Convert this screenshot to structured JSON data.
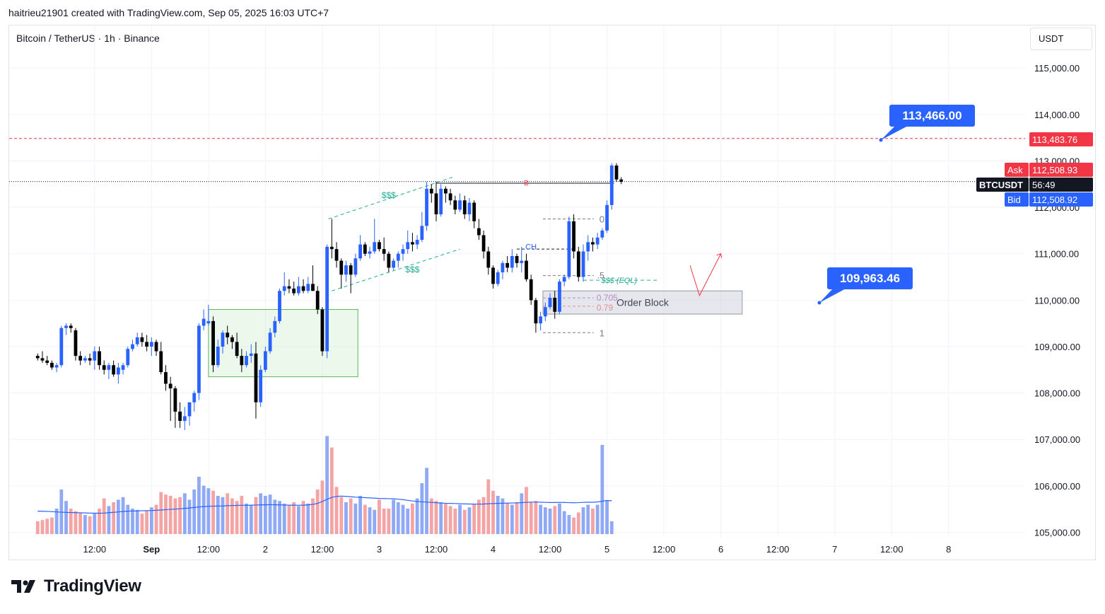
{
  "header": {
    "attribution": "haitrieu21901 created with TradingView.com, Sep 05, 2025 16:03 UTC+7"
  },
  "symbol": {
    "title": "Bitcoin / TetherUS · 1h · Binance"
  },
  "toolbar": {
    "currency": "USDT"
  },
  "brand": {
    "name": "TradingView"
  },
  "colors": {
    "up": "#2962ff",
    "down": "#000000",
    "vol_up": "#8fa9f5",
    "vol_down": "#f4a4a4",
    "ask": "#f23645",
    "bid": "#2962ff",
    "dashed_line": "#f23645",
    "order_block": "#d1d4dc",
    "green_zone": "#c8ecc8",
    "ma": "#2962ff"
  },
  "chart_data": {
    "type": "candlestick",
    "y_axis": {
      "range": [
        104950,
        115650
      ],
      "ticks": [
        105000,
        106000,
        107000,
        108000,
        109000,
        110000,
        111000,
        112000,
        113000,
        114000,
        115000
      ],
      "tick_labels": [
        "105,000.00",
        "106,000.00",
        "107,000.00",
        "108,000.00",
        "109,000.00",
        "110,000.00",
        "111,000.00",
        "112,000.00",
        "113,000.00",
        "114,000.00",
        "115,000.00"
      ]
    },
    "x_axis": {
      "range_hours": [
        -6,
        141
      ],
      "tick_hours": [
        12,
        24,
        36,
        48,
        60,
        72,
        84,
        96,
        108,
        120,
        132,
        144,
        156,
        168,
        180,
        192
      ],
      "tick_labels": [
        "12:00",
        "Sep",
        "12:00",
        "2",
        "12:00",
        "3",
        "12:00",
        "4",
        "12:00",
        "5",
        "12:00",
        "6",
        "12:00",
        "7",
        "12:00",
        "8"
      ]
    },
    "candles": [
      [
        108800,
        108850,
        108700,
        108750
      ],
      [
        108750,
        108900,
        108650,
        108700
      ],
      [
        108700,
        108800,
        108600,
        108650
      ],
      [
        108650,
        108700,
        108500,
        108550
      ],
      [
        108550,
        108650,
        108450,
        108600
      ],
      [
        108600,
        109450,
        108550,
        109400
      ],
      [
        109400,
        109500,
        109250,
        109450
      ],
      [
        109450,
        109500,
        109300,
        109400
      ],
      [
        109350,
        109400,
        108700,
        108800
      ],
      [
        108800,
        108900,
        108600,
        108700
      ],
      [
        108700,
        108800,
        108650,
        108750
      ],
      [
        108750,
        108850,
        108600,
        108700
      ],
      [
        108700,
        109000,
        108500,
        108900
      ],
      [
        108900,
        109000,
        108500,
        108600
      ],
      [
        108600,
        108700,
        108400,
        108500
      ],
      [
        108500,
        108650,
        108300,
        108600
      ],
      [
        108600,
        108700,
        108350,
        108400
      ],
      [
        108400,
        108650,
        108200,
        108550
      ],
      [
        108500,
        108650,
        108400,
        108600
      ],
      [
        108600,
        109000,
        108550,
        108950
      ],
      [
        108950,
        109150,
        108900,
        109050
      ],
      [
        109050,
        109300,
        109000,
        109200
      ],
      [
        109200,
        109300,
        109000,
        109100
      ],
      [
        109100,
        109250,
        108900,
        109000
      ],
      [
        109000,
        109200,
        108800,
        109100
      ],
      [
        109100,
        109150,
        108800,
        108900
      ],
      [
        108900,
        109100,
        108400,
        108450
      ],
      [
        108450,
        108600,
        108050,
        108200
      ],
      [
        108200,
        108350,
        107400,
        108100
      ],
      [
        108100,
        108150,
        107250,
        107600
      ],
      [
        107600,
        107800,
        107250,
        107400
      ],
      [
        107400,
        107700,
        107200,
        107500
      ],
      [
        107500,
        107800,
        107300,
        107800
      ],
      [
        107800,
        108050,
        107600,
        108000
      ],
      [
        108000,
        109500,
        107850,
        109450
      ],
      [
        109450,
        109800,
        109350,
        109600
      ],
      [
        109500,
        109900,
        109450,
        109550
      ],
      [
        109550,
        109650,
        108450,
        108600
      ],
      [
        108600,
        109150,
        108550,
        109000
      ],
      [
        109000,
        109350,
        108850,
        109300
      ],
      [
        109300,
        109450,
        109050,
        109200
      ],
      [
        109200,
        109250,
        108950,
        109100
      ],
      [
        109100,
        109300,
        108750,
        108800
      ],
      [
        108800,
        108950,
        108450,
        108600
      ],
      [
        108600,
        108900,
        108550,
        108800
      ],
      [
        108800,
        109050,
        108650,
        108850
      ],
      [
        108850,
        109100,
        107450,
        107800
      ],
      [
        107800,
        108600,
        107700,
        108500
      ],
      [
        108500,
        109000,
        108450,
        108900
      ],
      [
        108900,
        109400,
        108850,
        109300
      ],
      [
        109300,
        109650,
        109200,
        109550
      ],
      [
        109550,
        110250,
        109500,
        110200
      ],
      [
        110200,
        110600,
        110100,
        110300
      ],
      [
        110300,
        110450,
        110150,
        110250
      ],
      [
        110250,
        110400,
        110100,
        110150
      ],
      [
        110150,
        110500,
        110100,
        110300
      ],
      [
        110300,
        110450,
        110150,
        110200
      ],
      [
        110200,
        110500,
        110150,
        110350
      ],
      [
        110350,
        110750,
        110200,
        110200
      ],
      [
        110200,
        110300,
        109700,
        109800
      ],
      [
        109800,
        109850,
        108800,
        108900
      ],
      [
        108900,
        111200,
        108750,
        111150
      ],
      [
        111150,
        111750,
        110900,
        111100
      ],
      [
        111100,
        111250,
        110700,
        110850
      ],
      [
        110850,
        110900,
        110250,
        110550
      ],
      [
        110550,
        110850,
        110400,
        110750
      ],
      [
        110750,
        110800,
        110150,
        110550
      ],
      [
        110550,
        111000,
        110500,
        110900
      ],
      [
        110900,
        111400,
        110850,
        111200
      ],
      [
        111200,
        111250,
        110950,
        111000
      ],
      [
        111000,
        111150,
        110900,
        111050
      ],
      [
        111050,
        111750,
        111000,
        111250
      ],
      [
        111250,
        111300,
        111050,
        111100
      ],
      [
        111100,
        111350,
        110850,
        111000
      ],
      [
        111000,
        111050,
        110600,
        110700
      ],
      [
        110700,
        110900,
        110650,
        110850
      ],
      [
        110850,
        111050,
        110700,
        111000
      ],
      [
        111000,
        111200,
        110850,
        111100
      ],
      [
        111100,
        111500,
        111000,
        111250
      ],
      [
        111250,
        111450,
        111050,
        111200
      ],
      [
        111200,
        111400,
        111100,
        111300
      ],
      [
        111300,
        111900,
        111250,
        111600
      ],
      [
        111600,
        112550,
        111500,
        112400
      ],
      [
        112400,
        112500,
        112100,
        112300
      ],
      [
        112300,
        112550,
        111700,
        111850
      ],
      [
        111850,
        112500,
        111800,
        112400
      ],
      [
        112400,
        112450,
        112100,
        112300
      ],
      [
        112300,
        112400,
        112050,
        112150
      ],
      [
        112150,
        112250,
        111850,
        111950
      ],
      [
        111950,
        112300,
        111900,
        112150
      ],
      [
        112150,
        112250,
        111750,
        111850
      ],
      [
        111850,
        112200,
        111700,
        112100
      ],
      [
        112100,
        112150,
        111550,
        111700
      ],
      [
        111550,
        111750,
        111300,
        111400
      ],
      [
        111400,
        111500,
        110900,
        111050
      ],
      [
        111050,
        111150,
        110550,
        110700
      ],
      [
        110700,
        110750,
        110250,
        110350
      ],
      [
        110350,
        110650,
        110300,
        110600
      ],
      [
        110600,
        110850,
        110450,
        110800
      ],
      [
        110800,
        110950,
        110600,
        110700
      ],
      [
        110700,
        111100,
        110600,
        110950
      ],
      [
        110950,
        111000,
        110700,
        110800
      ],
      [
        110800,
        111150,
        110600,
        110850
      ],
      [
        110850,
        111000,
        110400,
        110450
      ],
      [
        110450,
        110550,
        109900,
        110000
      ],
      [
        110000,
        110050,
        109300,
        109500
      ],
      [
        109500,
        109750,
        109350,
        109650
      ],
      [
        109650,
        109950,
        109550,
        109850
      ],
      [
        109850,
        110150,
        109800,
        110050
      ],
      [
        110050,
        110200,
        109600,
        109750
      ],
      [
        109750,
        110450,
        109700,
        110400
      ],
      [
        110400,
        110550,
        110300,
        110500
      ],
      [
        110500,
        111800,
        110450,
        111700
      ],
      [
        111700,
        111850,
        110900,
        111050
      ],
      [
        111050,
        111150,
        110400,
        110500
      ],
      [
        110500,
        111200,
        110400,
        111050
      ],
      [
        111050,
        111400,
        110850,
        111250
      ],
      [
        111250,
        111350,
        111050,
        111200
      ],
      [
        111200,
        111450,
        111100,
        111350
      ],
      [
        111350,
        111550,
        111300,
        111500
      ],
      [
        111500,
        112150,
        111450,
        112050
      ],
      [
        112050,
        112950,
        111950,
        112900
      ],
      [
        112900,
        112950,
        112550,
        112600
      ],
      [
        112600,
        112650,
        112500,
        112550
      ]
    ],
    "volume": {
      "max": 10000,
      "values": [
        1000,
        1100,
        1200,
        1300,
        2000,
        3500,
        2600,
        2000,
        1800,
        1700,
        1500,
        1400,
        1600,
        2000,
        2800,
        2200,
        2500,
        2700,
        2900,
        2300,
        2000,
        1900,
        1600,
        1800,
        2100,
        2300,
        3300,
        3100,
        3000,
        2800,
        2900,
        3200,
        2700,
        3500,
        4500,
        3800,
        3600,
        3400,
        3000,
        2900,
        3200,
        2800,
        2600,
        3000,
        2400,
        2300,
        2900,
        3200,
        3000,
        3100,
        2700,
        2600,
        2400,
        2300,
        2500,
        2200,
        2600,
        2400,
        2800,
        3500,
        4200,
        7700,
        6800,
        3700,
        2900,
        2500,
        2800,
        2400,
        3000,
        2300,
        2100,
        1900,
        2700,
        2000,
        2000,
        2700,
        2500,
        2300,
        2000,
        2400,
        2800,
        4000,
        5200,
        2800,
        2600,
        2500,
        2400,
        2200,
        2000,
        2300,
        1900,
        2100,
        2400,
        2700,
        2900,
        4300,
        3400,
        3000,
        2800,
        2400,
        2300,
        2500,
        3200,
        3700,
        2500,
        2600,
        2300,
        2100,
        2000,
        2200,
        2400,
        1800,
        1500,
        1300,
        1700,
        2100,
        2300,
        2000,
        2300,
        7000,
        2600,
        1000
      ]
    },
    "moving_average": [
      1800,
      1790,
      1780,
      1760,
      1740,
      1720,
      1700,
      1690,
      1680,
      1670,
      1660,
      1650,
      1640,
      1640,
      1650,
      1680,
      1710,
      1740,
      1770,
      1800,
      1810,
      1820,
      1830,
      1840,
      1850,
      1870,
      1890,
      1920,
      1940,
      1960,
      1990,
      2020,
      2050,
      2090,
      2130,
      2160,
      2180,
      2190,
      2200,
      2210,
      2230,
      2240,
      2250,
      2260,
      2260,
      2270,
      2280,
      2290,
      2300,
      2310,
      2300,
      2290,
      2280,
      2270,
      2270,
      2260,
      2270,
      2290,
      2330,
      2410,
      2560,
      2730,
      2880,
      2960,
      2980,
      2960,
      2930,
      2900,
      2880,
      2860,
      2840,
      2820,
      2800,
      2790,
      2780,
      2770,
      2740,
      2700,
      2650,
      2600,
      2560,
      2530,
      2510,
      2490,
      2460,
      2440,
      2420,
      2410,
      2400,
      2380,
      2370,
      2360,
      2350,
      2350,
      2360,
      2380,
      2400,
      2410,
      2420,
      2430,
      2440,
      2450,
      2470,
      2490,
      2510,
      2510,
      2500,
      2490,
      2480,
      2480,
      2490,
      2480,
      2470,
      2460,
      2470,
      2490,
      2500,
      2500,
      2520,
      2580,
      2640,
      2620
    ],
    "price_tags": {
      "last_red": "113,483.76",
      "ask_label": "Ask",
      "ask": "112,508.93",
      "symbol": "BTCUSDT",
      "countdown": "56:49",
      "bid_label": "Bid",
      "bid": "112,508.92"
    },
    "levels": {
      "dashed_target": 113483.76,
      "current": 112555
    },
    "annotations": {
      "callout_top": "113,466.00",
      "callout_bottom": "109,963.46",
      "order_block": "Order Block",
      "fib_0": "0",
      "fib_half": ".5",
      "fib_0705": "0.705",
      "fib_079": "0.79",
      "fib_1": "1",
      "ch": "CH",
      "b": "B",
      "liq_top": "$$$",
      "liq_bottom": "$$$",
      "eql": "$$$ (EQL)"
    }
  }
}
